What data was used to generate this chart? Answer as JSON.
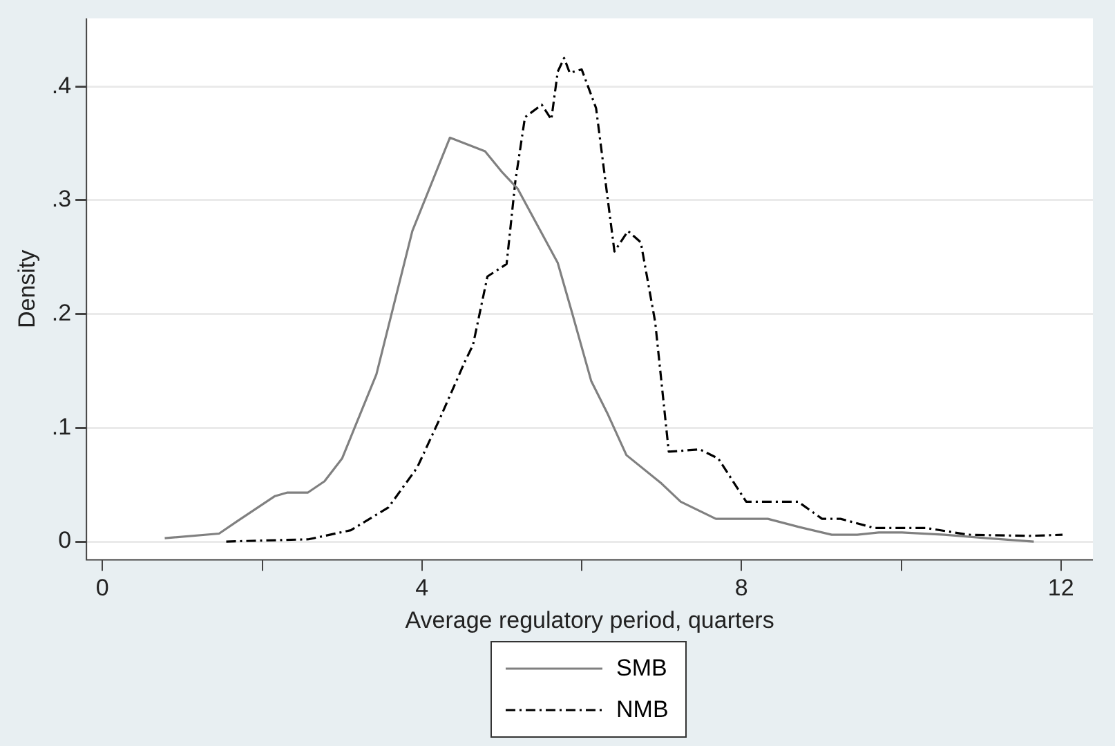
{
  "chart_data": {
    "type": "line",
    "xlabel": "Average regulatory period, quarters",
    "ylabel": "Density",
    "xlim": [
      -0.2,
      12.4
    ],
    "ylim": [
      -0.016,
      0.46
    ],
    "xticks": [
      0,
      {
        "value": 2,
        "label": null
      },
      4,
      {
        "value": 6,
        "label": null
      },
      8,
      {
        "value": 10,
        "label": null
      },
      12
    ],
    "yticks": [
      0,
      {
        "value": 0.1,
        "label": ".1"
      },
      {
        "value": 0.2,
        "label": ".2"
      },
      {
        "value": 0.3,
        "label": ".3"
      },
      {
        "value": 0.4,
        "label": ".4"
      }
    ],
    "grid": "y",
    "legend": "bottom",
    "marker": "none",
    "series": [
      {
        "name": "SMB",
        "color": "#808080",
        "line_style": "solid",
        "x": [
          0.78,
          1.46,
          1.69,
          2.16,
          2.31,
          2.57,
          2.78,
          3.0,
          3.43,
          3.88,
          4.35,
          4.79,
          5.0,
          5.2,
          5.7,
          5.88,
          6.12,
          6.32,
          6.56,
          7.0,
          7.24,
          7.68,
          8.33,
          8.71,
          9.13,
          9.45,
          9.72,
          10.01,
          10.54,
          11.07,
          11.66
        ],
        "values": [
          0.003,
          0.007,
          0.018,
          0.04,
          0.043,
          0.043,
          0.053,
          0.073,
          0.147,
          0.273,
          0.355,
          0.343,
          0.325,
          0.31,
          0.245,
          0.201,
          0.141,
          0.113,
          0.076,
          0.051,
          0.035,
          0.02,
          0.02,
          0.013,
          0.006,
          0.006,
          0.008,
          0.008,
          0.006,
          0.003,
          0.0
        ]
      },
      {
        "name": "NMB",
        "color": "#000000",
        "line_style": "dashed",
        "x": [
          1.55,
          2.58,
          3.11,
          3.58,
          3.94,
          4.23,
          4.53,
          4.64,
          4.82,
          5.06,
          5.17,
          5.29,
          5.5,
          5.62,
          5.7,
          5.78,
          5.85,
          6.0,
          6.18,
          6.41,
          6.58,
          6.74,
          6.92,
          7.09,
          7.48,
          7.71,
          8.06,
          8.71,
          9.01,
          9.24,
          9.66,
          10.31,
          10.84,
          11.6,
          12.02
        ],
        "values": [
          0.0,
          0.002,
          0.01,
          0.03,
          0.065,
          0.109,
          0.157,
          0.173,
          0.233,
          0.244,
          0.317,
          0.373,
          0.384,
          0.371,
          0.413,
          0.425,
          0.412,
          0.415,
          0.381,
          0.255,
          0.273,
          0.263,
          0.193,
          0.079,
          0.081,
          0.073,
          0.035,
          0.035,
          0.02,
          0.02,
          0.012,
          0.012,
          0.006,
          0.005,
          0.006
        ]
      }
    ]
  }
}
